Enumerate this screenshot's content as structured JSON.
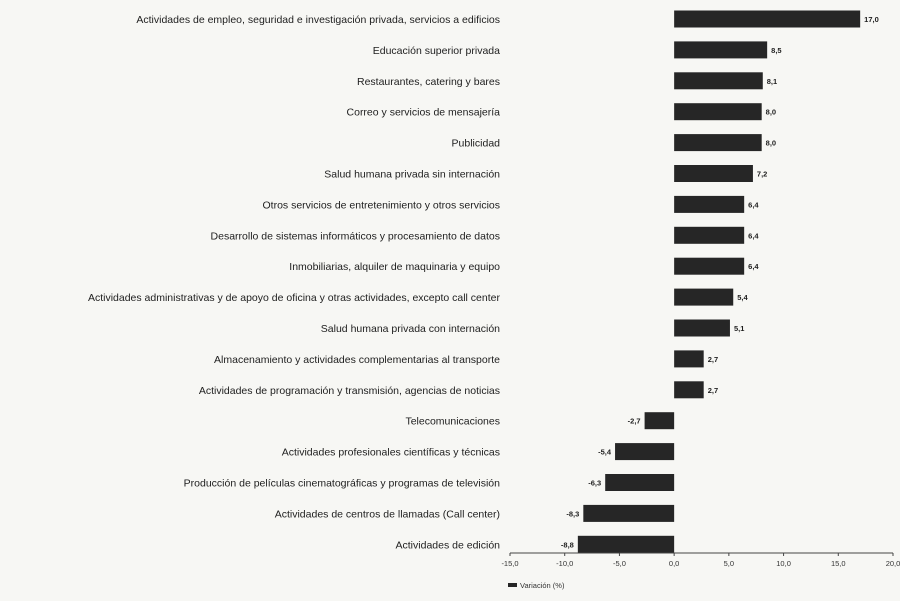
{
  "chart_data": {
    "type": "bar",
    "orientation": "horizontal",
    "categories": [
      "Actividades de empleo, seguridad e investigación privada, servicios a edificios",
      "Educación superior privada",
      "Restaurantes, catering y bares",
      "Correo y servicios de mensajería",
      "Publicidad",
      "Salud humana privada sin internación",
      "Otros servicios de entretenimiento y otros servicios",
      "Desarrollo de sistemas informáticos y procesamiento de datos",
      "Inmobiliarias, alquiler de maquinaria y equipo",
      "Actividades administrativas y de apoyo de oficina y otras actividades, excepto call center",
      "Salud humana privada con internación",
      "Almacenamiento y actividades complementarias al transporte",
      "Actividades de programación y transmisión, agencias de noticias",
      "Telecomunicaciones",
      "Actividades profesionales científicas y técnicas",
      "Producción de películas cinematográficas y programas de televisión",
      "Actividades de centros de llamadas (Call center)",
      "Actividades de edición"
    ],
    "values": [
      17.0,
      8.5,
      8.1,
      8.0,
      8.0,
      7.2,
      6.4,
      6.4,
      6.4,
      5.4,
      5.1,
      2.7,
      2.7,
      -2.7,
      -5.4,
      -6.3,
      -8.3,
      -8.8
    ],
    "value_labels": [
      "17,0",
      "8,5",
      "8,1",
      "8,0",
      "8,0",
      "7,2",
      "6,4",
      "6,4",
      "6,4",
      "5,4",
      "5,1",
      "2,7",
      "2,7",
      "-2,7",
      "-5,4",
      "-6,3",
      "-8,3",
      "-8,8"
    ],
    "xlim": [
      -15.0,
      20.0
    ],
    "x_ticks": [
      -15.0,
      -10.0,
      -5.0,
      0.0,
      5.0,
      10.0,
      15.0,
      20.0
    ],
    "x_tick_labels": [
      "-15,0",
      "-10,0",
      "-5,0",
      "0,0",
      "5,0",
      "10,0",
      "15,0",
      "20,0"
    ],
    "series": [
      {
        "name": "Variación (%)",
        "color": "#262626"
      }
    ],
    "legend": {
      "position": "bottom-left",
      "label": "Variación (%)"
    },
    "grid": false,
    "title": "",
    "xlabel": "",
    "ylabel": ""
  }
}
